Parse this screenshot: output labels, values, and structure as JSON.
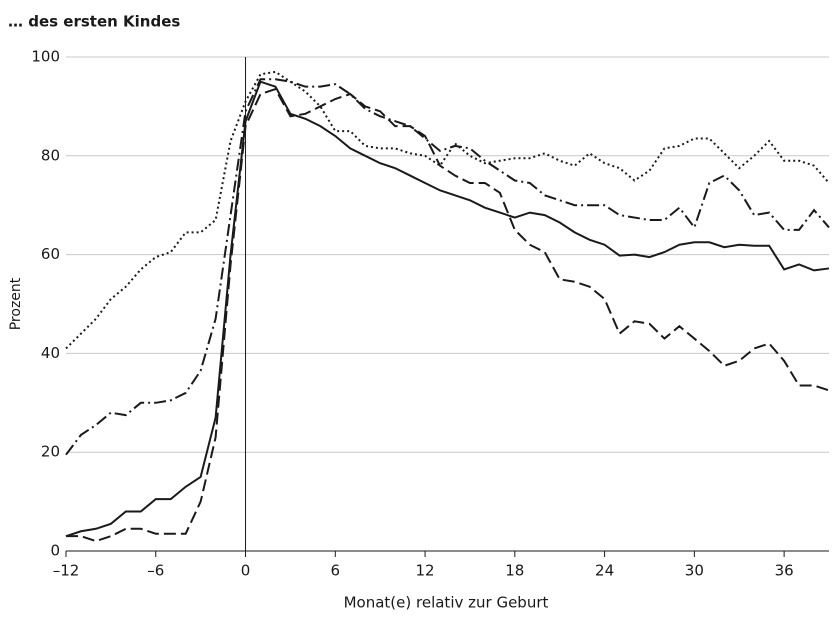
{
  "chart_data": {
    "type": "line",
    "title": "… des ersten Kindes",
    "xlabel": "Monat(e) relativ zur Geburt",
    "ylabel": "Prozent",
    "x": [
      -12,
      -11,
      -10,
      -9,
      -8,
      -7,
      -6,
      -5,
      -4,
      -3,
      -2,
      -1,
      0,
      1,
      2,
      3,
      4,
      5,
      6,
      7,
      8,
      9,
      10,
      11,
      12,
      13,
      14,
      15,
      16,
      17,
      18,
      19,
      20,
      21,
      22,
      23,
      24,
      25,
      26,
      27,
      28,
      29,
      30,
      31,
      32,
      33,
      34,
      35,
      36,
      37,
      38,
      39
    ],
    "series": [
      {
        "dash": "solid",
        "color": "#1a1a1a",
        "values": [
          3,
          4,
          4.5,
          5.5,
          8,
          8,
          10.5,
          10.5,
          13,
          15,
          27,
          60,
          87,
          95,
          94,
          88.5,
          87.5,
          86,
          84,
          81.5,
          80,
          78.5,
          77.5,
          76,
          74.5,
          73,
          72,
          71,
          69.5,
          68.5,
          67.5,
          68.5,
          68,
          66.5,
          64.5,
          63,
          62,
          59.8,
          60,
          59.5,
          60.5,
          62,
          62.5,
          62.5,
          61.5,
          62,
          61.8,
          61.8,
          57,
          58,
          56.8,
          57.2
        ]
      },
      {
        "dash": "dashed",
        "color": "#1a1a1a",
        "values": [
          3,
          3,
          2,
          3,
          4.5,
          4.5,
          3.5,
          3.5,
          3.5,
          10,
          23,
          58,
          86,
          92.5,
          93.5,
          88,
          88.5,
          90,
          91.5,
          92.5,
          90,
          89,
          86,
          86,
          84,
          78,
          76,
          74.5,
          74.5,
          72.5,
          65,
          62,
          60.5,
          55,
          54.5,
          53.5,
          51,
          44,
          46.5,
          46,
          43,
          45.5,
          43,
          40.5,
          37.5,
          38.5,
          41,
          42,
          38.5,
          33.5,
          33.5,
          32.5
        ]
      },
      {
        "dash": "dotted",
        "color": "#1a1a1a",
        "values": [
          41,
          44,
          47,
          51,
          53.5,
          57,
          59.5,
          60.5,
          64.5,
          64.5,
          67,
          83,
          91,
          96.5,
          97,
          95,
          93,
          90,
          85,
          85,
          82,
          81.5,
          81.5,
          80.5,
          80,
          78,
          82.5,
          80,
          78.5,
          79,
          79.5,
          79.5,
          80.5,
          79,
          78,
          80.5,
          78.5,
          77.5,
          75,
          77,
          81.5,
          82,
          83.5,
          83.5,
          80.5,
          77.5,
          80,
          83,
          79,
          79,
          78,
          74.5
        ]
      },
      {
        "dash": "dashdot",
        "color": "#1a1a1a",
        "values": [
          19.5,
          23.5,
          25.5,
          28,
          27.5,
          30,
          30,
          30.5,
          32,
          36.5,
          47,
          68,
          89,
          95.5,
          95.5,
          95,
          94,
          94,
          94.5,
          92.5,
          89.5,
          88,
          87,
          86,
          83.5,
          81,
          82,
          81.5,
          79,
          77,
          75,
          74.5,
          72,
          71,
          70,
          70,
          70,
          68,
          67.5,
          67,
          67,
          69.5,
          65.5,
          74.5,
          76,
          73,
          68,
          68.5,
          65,
          65,
          69,
          65.5
        ]
      }
    ],
    "xlim": [
      -12,
      39
    ],
    "ylim": [
      0,
      100
    ],
    "xticks": [
      {
        "value": -12,
        "label": "–12"
      },
      {
        "value": -6,
        "label": "–6"
      },
      0,
      6,
      12,
      18,
      24,
      30,
      36
    ],
    "yticks": [
      0,
      20,
      40,
      60,
      80,
      100
    ],
    "grid": true,
    "vline": 0
  }
}
